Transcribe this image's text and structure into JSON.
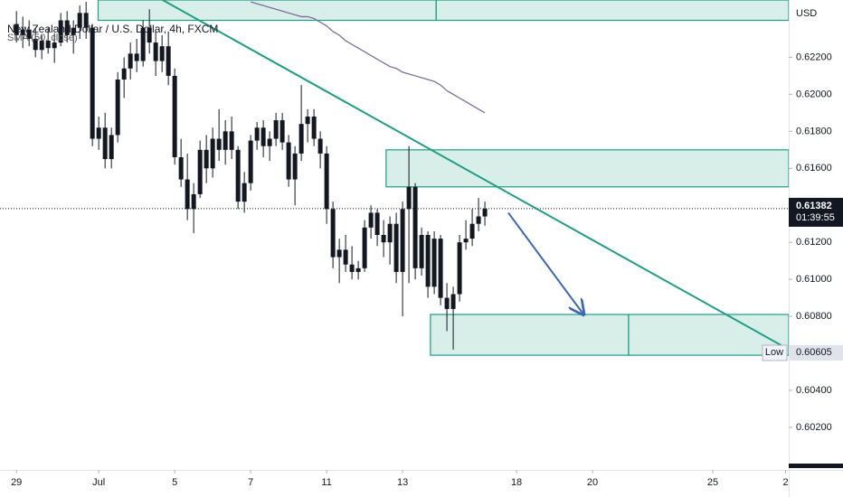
{
  "chart_data": {
    "type": "candlestick",
    "title": "New Zealand Dollar / U.S. Dollar, 4h, FXCM",
    "indicator": "SMA (50, close)",
    "currency": "USD",
    "color": "#131722",
    "xlim": [
      -2.6,
      122
    ],
    "ylim": [
      0.5997,
      0.6251
    ],
    "xticks": [
      {
        "value": 0,
        "label": "29"
      },
      {
        "value": 13,
        "label": "Jul"
      },
      {
        "value": 25,
        "label": "5"
      },
      {
        "value": 37,
        "label": "7"
      },
      {
        "value": 49,
        "label": "11"
      },
      {
        "value": 61,
        "label": "13"
      },
      {
        "value": 79,
        "label": "18"
      },
      {
        "value": 91,
        "label": "20"
      },
      {
        "value": 110,
        "label": "25"
      },
      {
        "value": 121.5,
        "label": "2"
      }
    ],
    "yticks": [
      {
        "value": 0.622,
        "label": "0.62200"
      },
      {
        "value": 0.62,
        "label": "0.62000"
      },
      {
        "value": 0.618,
        "label": "0.61800"
      },
      {
        "value": 0.616,
        "label": "0.61600"
      },
      {
        "value": 0.612,
        "label": "0.61200"
      },
      {
        "value": 0.61,
        "label": "0.61000"
      },
      {
        "value": 0.608,
        "label": "0.60800"
      },
      {
        "value": 0.604,
        "label": "0.60400"
      },
      {
        "value": 0.602,
        "label": "0.60200"
      }
    ],
    "grid": false,
    "open": [
      0.6238,
      0.6232,
      0.6235,
      0.623,
      0.6224,
      0.6229,
      0.6225,
      0.6228,
      0.624,
      0.6232,
      0.6236,
      0.6244,
      0.6236,
      0.6176,
      0.6182,
      0.6165,
      0.6178,
      0.6208,
      0.6214,
      0.6222,
      0.6218,
      0.6236,
      0.6228,
      0.6218,
      0.6226,
      0.621,
      0.6166,
      0.6154,
      0.6138,
      0.6146,
      0.617,
      0.616,
      0.6176,
      0.617,
      0.618,
      0.617,
      0.6142,
      0.6152,
      0.6175,
      0.6182,
      0.6172,
      0.6176,
      0.6186,
      0.6174,
      0.6154,
      0.6168,
      0.6184,
      0.6188,
      0.6176,
      0.6168,
      0.6138,
      0.6112,
      0.6116,
      0.6108,
      0.6104,
      0.6106,
      0.6128,
      0.6136,
      0.6124,
      0.612,
      0.613,
      0.6104,
      0.6138,
      0.615,
      0.6106,
      0.6124,
      0.6096,
      0.6122,
      0.609,
      0.6084,
      0.6092,
      0.612,
      0.6122,
      0.613,
      0.6134
    ],
    "high": [
      0.6245,
      0.6242,
      0.624,
      0.6236,
      0.6232,
      0.6236,
      0.6233,
      0.6244,
      0.6245,
      0.624,
      0.6248,
      0.625,
      0.6238,
      0.6188,
      0.619,
      0.6182,
      0.6212,
      0.622,
      0.6228,
      0.623,
      0.624,
      0.6246,
      0.6234,
      0.6232,
      0.6234,
      0.6214,
      0.6176,
      0.6168,
      0.6152,
      0.6175,
      0.6178,
      0.6182,
      0.6192,
      0.6186,
      0.6188,
      0.6172,
      0.6158,
      0.6178,
      0.6185,
      0.6186,
      0.618,
      0.619,
      0.619,
      0.6178,
      0.6172,
      0.6205,
      0.6192,
      0.6192,
      0.618,
      0.6172,
      0.6142,
      0.6122,
      0.6124,
      0.6118,
      0.611,
      0.6132,
      0.614,
      0.6138,
      0.6132,
      0.6134,
      0.6136,
      0.6142,
      0.6172,
      0.6152,
      0.6128,
      0.6126,
      0.6126,
      0.6124,
      0.6098,
      0.6096,
      0.6124,
      0.6132,
      0.6138,
      0.6144,
      0.6142
    ],
    "low": [
      0.6228,
      0.6225,
      0.6226,
      0.622,
      0.6219,
      0.6222,
      0.6217,
      0.6226,
      0.6228,
      0.6222,
      0.623,
      0.623,
      0.6172,
      0.617,
      0.616,
      0.616,
      0.6174,
      0.6198,
      0.6208,
      0.6212,
      0.6215,
      0.6222,
      0.621,
      0.6212,
      0.6205,
      0.6162,
      0.615,
      0.6132,
      0.6125,
      0.6144,
      0.6152,
      0.6155,
      0.6164,
      0.6162,
      0.6165,
      0.6138,
      0.6136,
      0.6148,
      0.617,
      0.6166,
      0.6164,
      0.6172,
      0.617,
      0.615,
      0.614,
      0.6164,
      0.6174,
      0.6172,
      0.616,
      0.613,
      0.6106,
      0.6098,
      0.6104,
      0.61,
      0.61,
      0.6104,
      0.6122,
      0.6118,
      0.6112,
      0.6108,
      0.6098,
      0.608,
      0.6098,
      0.61,
      0.6102,
      0.609,
      0.6092,
      0.6086,
      0.6072,
      0.6062,
      0.6088,
      0.6116,
      0.6118,
      0.6126,
      0.6129
    ],
    "close": [
      0.6232,
      0.6235,
      0.623,
      0.6224,
      0.6229,
      0.6225,
      0.6228,
      0.624,
      0.6232,
      0.6236,
      0.6244,
      0.6236,
      0.6176,
      0.6182,
      0.6165,
      0.6178,
      0.6208,
      0.6214,
      0.6222,
      0.6218,
      0.6236,
      0.6228,
      0.6218,
      0.6226,
      0.621,
      0.6166,
      0.6154,
      0.6138,
      0.6146,
      0.617,
      0.616,
      0.6176,
      0.617,
      0.618,
      0.617,
      0.6142,
      0.6152,
      0.6175,
      0.6182,
      0.6172,
      0.6176,
      0.6186,
      0.6174,
      0.6154,
      0.6168,
      0.6184,
      0.6188,
      0.6176,
      0.6168,
      0.6138,
      0.6112,
      0.6116,
      0.6108,
      0.6104,
      0.6106,
      0.6128,
      0.6136,
      0.6124,
      0.612,
      0.613,
      0.6104,
      0.6138,
      0.615,
      0.6106,
      0.6124,
      0.6096,
      0.6122,
      0.609,
      0.6084,
      0.6092,
      0.612,
      0.6122,
      0.613,
      0.6134,
      0.61382
    ],
    "sma": {
      "color": "#7e6f9e",
      "values": [
        null,
        null,
        null,
        null,
        null,
        null,
        null,
        null,
        null,
        null,
        null,
        null,
        null,
        null,
        null,
        null,
        null,
        null,
        null,
        null,
        null,
        null,
        null,
        null,
        null,
        null,
        null,
        null,
        null,
        null,
        null,
        null,
        null,
        null,
        null,
        null,
        null,
        0.625,
        0.6249,
        0.6248,
        0.6247,
        0.6246,
        0.6245,
        0.6244,
        0.6243,
        0.6242,
        0.6242,
        0.6241,
        0.6239,
        0.6237,
        0.6234,
        0.6232,
        0.6229,
        0.6227,
        0.6225,
        0.6223,
        0.6221,
        0.6219,
        0.6217,
        0.6215,
        0.6214,
        0.6212,
        0.6211,
        0.621,
        0.6209,
        0.6208,
        0.6207,
        0.6205,
        0.6202,
        0.62,
        0.6198,
        0.6196,
        0.6194,
        0.6192,
        0.619
      ]
    },
    "zones": [
      {
        "xmin": 12.9,
        "xmax": 66.3,
        "ymin": 0.624,
        "ymax": 0.6251
      },
      {
        "xmin": 66.3,
        "xmax": 122,
        "ymin": 0.624,
        "ymax": 0.6251
      },
      {
        "xmin": 58.4,
        "xmax": 122,
        "ymin": 0.615,
        "ymax": 0.617
      },
      {
        "xmin": 65.4,
        "xmax": 96.7,
        "ymin": 0.6059,
        "ymax": 0.6081
      },
      {
        "xmin": 96.7,
        "xmax": 122,
        "ymin": 0.6059,
        "ymax": 0.6081
      }
    ],
    "zone_color": "#1f9e84",
    "trendline": {
      "x": [
        23.1,
        121
      ],
      "y": [
        0.6251,
        0.6064
      ],
      "color": "#1f9e84"
    },
    "arrow": {
      "x": [
        77.7,
        89.6
      ],
      "y": [
        0.6136,
        0.6081
      ],
      "color": "#3b68b5"
    },
    "current_price": 0.61382,
    "countdown": "01:39:55",
    "low_label": "Low",
    "low_value": 0.60605
  }
}
